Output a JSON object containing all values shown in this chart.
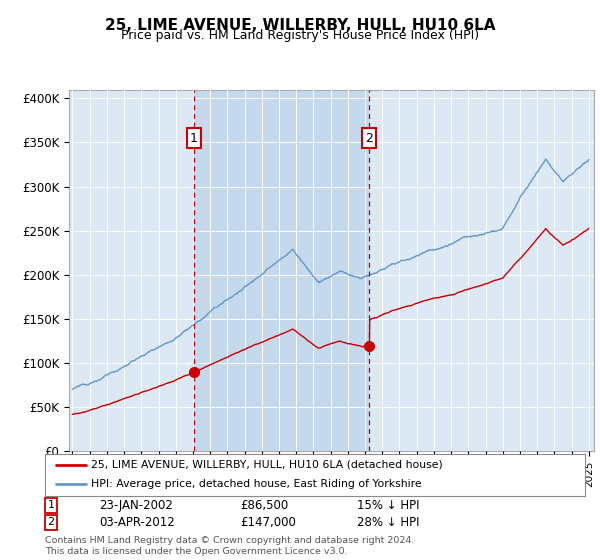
{
  "title1": "25, LIME AVENUE, WILLERBY, HULL, HU10 6LA",
  "title2": "Price paid vs. HM Land Registry's House Price Index (HPI)",
  "ylabel_ticks": [
    "£0",
    "£50K",
    "£100K",
    "£150K",
    "£200K",
    "£250K",
    "£300K",
    "£350K",
    "£400K"
  ],
  "ytick_values": [
    0,
    50000,
    100000,
    150000,
    200000,
    250000,
    300000,
    350000,
    400000
  ],
  "ylim": [
    0,
    410000
  ],
  "xlim_start": 1994.8,
  "xlim_end": 2025.3,
  "background_color": "#dce9f5",
  "shade_color": "#c5d9ed",
  "outer_bg_color": "#ffffff",
  "hpi_color": "#6699cc",
  "price_color": "#cc0000",
  "sale1_x": 2002.06,
  "sale1_price": 86500,
  "sale2_x": 2012.25,
  "sale2_price": 147000,
  "legend_line1": "25, LIME AVENUE, WILLERBY, HULL, HU10 6LA (detached house)",
  "legend_line2": "HPI: Average price, detached house, East Riding of Yorkshire",
  "footnote1": "Contains HM Land Registry data © Crown copyright and database right 2024.",
  "footnote2": "This data is licensed under the Open Government Licence v3.0.",
  "note1_date": "23-JAN-2002",
  "note1_price": "£86,500",
  "note1_pct": "15% ↓ HPI",
  "note2_date": "03-APR-2012",
  "note2_price": "£147,000",
  "note2_pct": "28% ↓ HPI"
}
